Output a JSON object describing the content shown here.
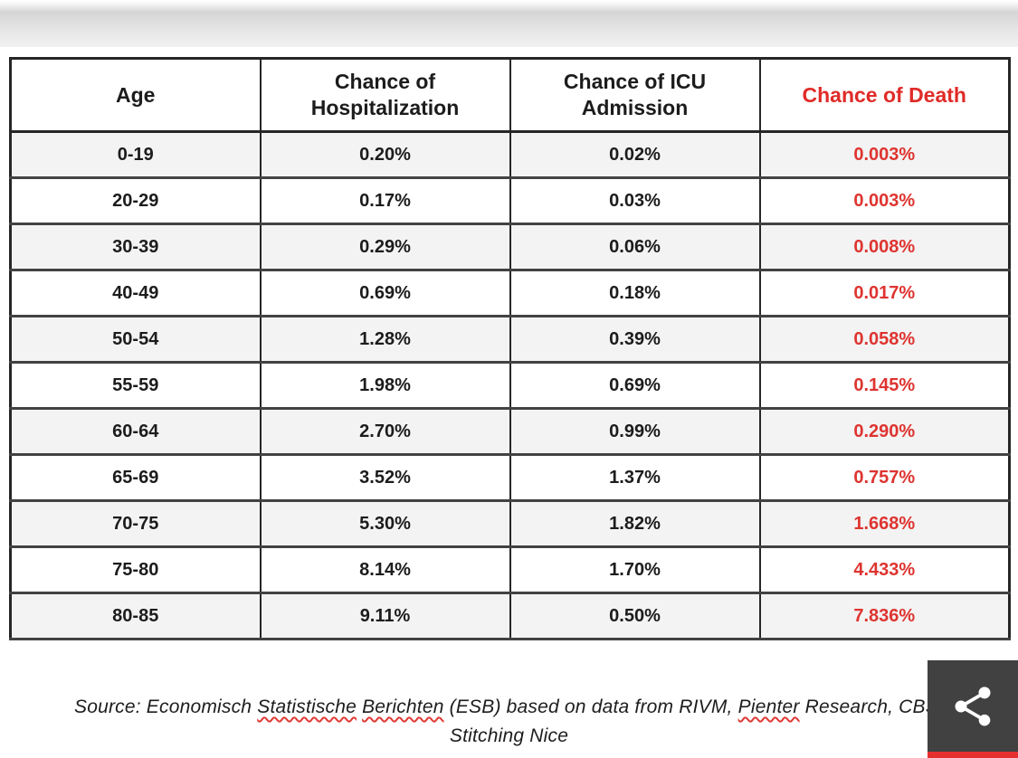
{
  "colors": {
    "text_black": "#1c1c1c",
    "header_red": "#e02b28",
    "death_red": "#de3430",
    "row_bg": "#ffffff",
    "row_alt_bg": "#f3f3f3",
    "grid_dark": "#262626",
    "grid_row_line": "#424242",
    "share_box_bg": "#414141",
    "share_icon_color": "#ffffff",
    "accent_bar_red": "#e6302f"
  },
  "table": {
    "columns": [
      {
        "label": "Age",
        "color": "black"
      },
      {
        "label": "Chance of Hospitalization",
        "color": "black"
      },
      {
        "label": "Chance of ICU Admission",
        "color": "black"
      },
      {
        "label": "Chance of Death",
        "color": "red"
      }
    ],
    "rows": [
      [
        "0-19",
        "0.20%",
        "0.02%",
        "0.003%"
      ],
      [
        "20-29",
        "0.17%",
        "0.03%",
        "0.003%"
      ],
      [
        "30-39",
        "0.29%",
        "0.06%",
        "0.008%"
      ],
      [
        "40-49",
        "0.69%",
        "0.18%",
        "0.017%"
      ],
      [
        "50-54",
        "1.28%",
        "0.39%",
        "0.058%"
      ],
      [
        "55-59",
        "1.98%",
        "0.69%",
        "0.145%"
      ],
      [
        "60-64",
        "2.70%",
        "0.99%",
        "0.290%"
      ],
      [
        "65-69",
        "3.52%",
        "1.37%",
        "0.757%"
      ],
      [
        "70-75",
        "5.30%",
        "1.82%",
        "1.668%"
      ],
      [
        "75-80",
        "8.14%",
        "1.70%",
        "4.433%"
      ],
      [
        "80-85",
        "9.11%",
        "0.50%",
        "7.836%"
      ]
    ]
  },
  "source": {
    "line1_segments": [
      {
        "text": "Source: Economisch ",
        "misspelled": false
      },
      {
        "text": "Statistische",
        "misspelled": true
      },
      {
        "text": " ",
        "misspelled": false
      },
      {
        "text": "Berichten",
        "misspelled": true
      },
      {
        "text": " (ESB) based on data from RIVM, ",
        "misspelled": false
      },
      {
        "text": "Pienter",
        "misspelled": true
      },
      {
        "text": " Research, CBS,",
        "misspelled": false
      }
    ],
    "line2": "Stitching Nice"
  },
  "share_overlay": {
    "icon": "share-icon"
  }
}
